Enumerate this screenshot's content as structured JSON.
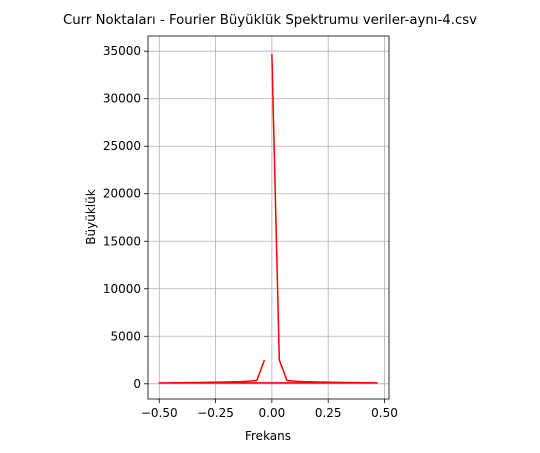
{
  "chart_data": {
    "type": "line",
    "title": "Curr Noktaları - Fourier Büyüklük Spektrumu veriler-aynı-4.csv",
    "xlabel": "Frekans",
    "ylabel": "Büyüklük",
    "xlim": [
      -0.55,
      0.52
    ],
    "ylim": [
      -1600,
      36600
    ],
    "xticks": [
      -0.5,
      -0.25,
      0.0,
      0.25,
      0.5
    ],
    "xtick_labels": [
      "−0.50",
      "−0.25",
      "0.00",
      "0.25",
      "0.50"
    ],
    "yticks": [
      0,
      5000,
      10000,
      15000,
      20000,
      25000,
      30000,
      35000
    ],
    "ytick_labels": [
      "0",
      "5000",
      "10000",
      "15000",
      "20000",
      "25000",
      "30000",
      "35000"
    ],
    "grid": true,
    "series": [
      {
        "color": "#ff0000",
        "x": [
          0.0,
          0.033,
          0.067,
          0.1,
          0.133,
          0.167,
          0.2,
          0.233,
          0.267,
          0.3,
          0.333,
          0.367,
          0.4,
          0.433,
          0.467,
          -0.5,
          -0.467,
          -0.433,
          -0.4,
          -0.367,
          -0.333,
          -0.3,
          -0.267,
          -0.233,
          -0.2,
          -0.167,
          -0.133,
          -0.1,
          -0.067,
          -0.033
        ],
        "y": [
          34700,
          2500,
          350,
          280,
          230,
          210,
          190,
          170,
          160,
          150,
          140,
          130,
          120,
          110,
          100,
          100,
          100,
          110,
          120,
          130,
          140,
          150,
          160,
          170,
          190,
          210,
          230,
          280,
          350,
          2500
        ]
      }
    ]
  }
}
